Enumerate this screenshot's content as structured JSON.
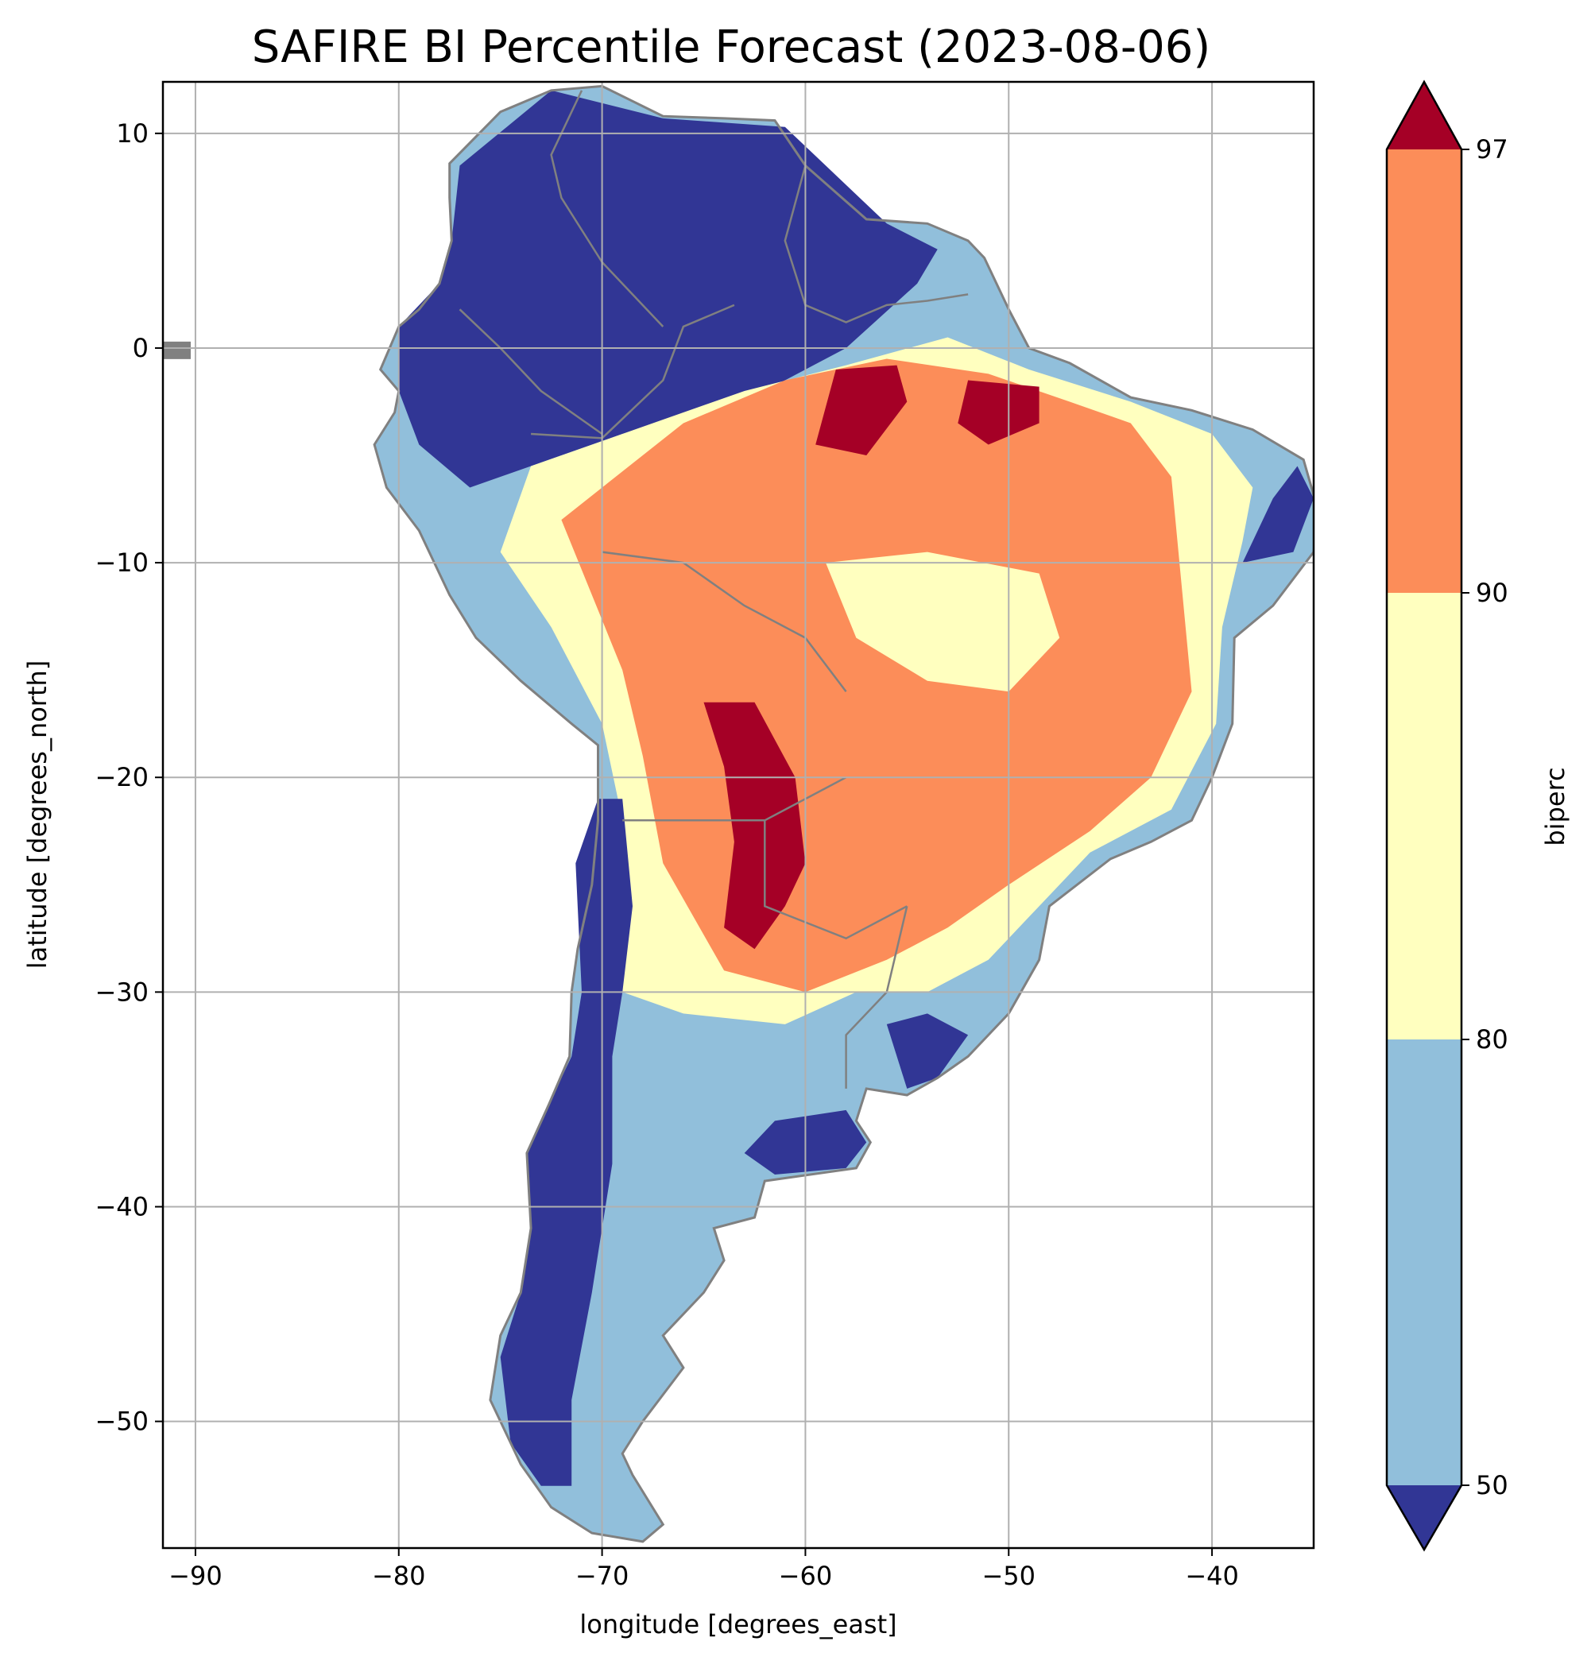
{
  "title": "SAFIRE BI Percentile Forecast (2023-08-06)",
  "map": {
    "xlabel": "longitude [degrees_east]",
    "ylabel": "latitude [degrees_north]",
    "xlim": [
      -91.6,
      -35.0
    ],
    "ylim": [
      -55.9,
      12.4
    ],
    "x_ticks": [
      -90,
      -80,
      -70,
      -60,
      -50,
      -40
    ],
    "y_ticks": [
      10,
      0,
      -10,
      -20,
      -30,
      -40,
      -50
    ],
    "x_tick_labels": [
      "−90",
      "−80",
      "−70",
      "−60",
      "−50",
      "−40"
    ],
    "y_tick_labels": [
      "10",
      "0",
      "−10",
      "−20",
      "−30",
      "−40",
      "−50"
    ],
    "grid": true,
    "border_color": "#808080",
    "grid_color": "#b0b0b0"
  },
  "colorbar": {
    "label": "biperc",
    "levels": [
      50,
      80,
      90,
      97
    ],
    "tick_labels": [
      "50",
      "80",
      "90",
      "97"
    ],
    "extend": "both",
    "colors": {
      "under": "#313695",
      "50-80": "#91bfdb",
      "80-90": "#ffffbf",
      "90-97": "#fc8d59",
      "over": "#a50026"
    }
  }
}
